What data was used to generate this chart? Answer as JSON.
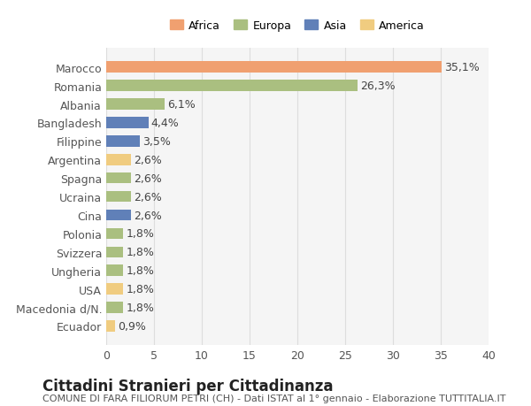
{
  "title": "Cittadini Stranieri per Cittadinanza",
  "subtitle": "COMUNE DI FARA FILIORUM PETRI (CH) - Dati ISTAT al 1° gennaio - Elaborazione TUTTITALIA.IT",
  "categories": [
    "Marocco",
    "Romania",
    "Albania",
    "Bangladesh",
    "Filippine",
    "Argentina",
    "Spagna",
    "Ucraina",
    "Cina",
    "Polonia",
    "Svizzera",
    "Ungheria",
    "USA",
    "Macedonia d/N.",
    "Ecuador"
  ],
  "values": [
    35.1,
    26.3,
    6.1,
    4.4,
    3.5,
    2.6,
    2.6,
    2.6,
    2.6,
    1.8,
    1.8,
    1.8,
    1.8,
    1.8,
    0.9
  ],
  "labels": [
    "35,1%",
    "26,3%",
    "6,1%",
    "4,4%",
    "3,5%",
    "2,6%",
    "2,6%",
    "2,6%",
    "2,6%",
    "1,8%",
    "1,8%",
    "1,8%",
    "1,8%",
    "1,8%",
    "0,9%"
  ],
  "continent": [
    "Africa",
    "Europa",
    "Europa",
    "Asia",
    "Asia",
    "America",
    "Europa",
    "Europa",
    "Asia",
    "Europa",
    "Europa",
    "Europa",
    "America",
    "Europa",
    "America"
  ],
  "colors": {
    "Africa": "#F0A070",
    "Europa": "#AABF80",
    "Asia": "#6080B8",
    "America": "#F0CC80"
  },
  "legend_order": [
    "Africa",
    "Europa",
    "Asia",
    "America"
  ],
  "xlim": [
    0,
    40
  ],
  "xticks": [
    0,
    5,
    10,
    15,
    20,
    25,
    30,
    35,
    40
  ],
  "background_color": "#ffffff",
  "grid_color": "#dddddd",
  "label_fontsize": 9,
  "tick_fontsize": 9,
  "title_fontsize": 12,
  "subtitle_fontsize": 8
}
